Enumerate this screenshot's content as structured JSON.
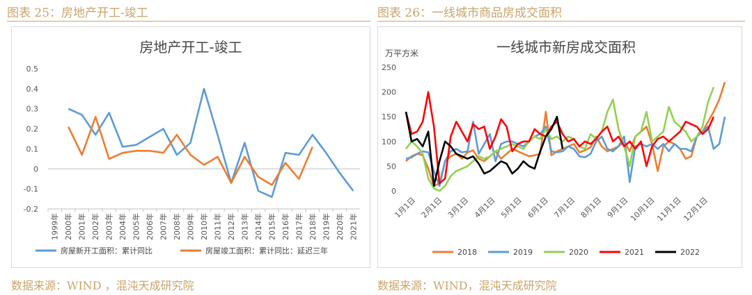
{
  "left": {
    "fig_label": "图表 25：房地产开工-竣工",
    "source": "数据来源：WIND ，混沌天成研究院",
    "chart_data": {
      "type": "line",
      "title": "房地产开工-竣工",
      "categories": [
        "1999年",
        "2000年",
        "2001年",
        "2002年",
        "2003年",
        "2004年",
        "2005年",
        "2006年",
        "2007年",
        "2008年",
        "2009年",
        "2010年",
        "2011年",
        "2012年",
        "2013年",
        "2014年",
        "2015年",
        "2016年",
        "2017年",
        "2018年",
        "2019年",
        "2020年",
        "2021年"
      ],
      "ylim": [
        -0.2,
        0.5
      ],
      "yticks": [
        "0.5",
        "0.4",
        "0.3",
        "0.2",
        "0.1",
        "0",
        "-0.1",
        "-0.2"
      ],
      "legend_position": "bottom",
      "series": [
        {
          "name": "房屋新开工面积：累计同比",
          "color": "#5b9bd5",
          "values": [
            null,
            0.3,
            0.27,
            0.17,
            0.28,
            0.11,
            0.12,
            0.16,
            0.2,
            0.07,
            0.13,
            0.4,
            0.17,
            -0.07,
            0.13,
            -0.11,
            -0.14,
            0.08,
            0.07,
            0.17,
            0.08,
            -0.02,
            -0.11
          ]
        },
        {
          "name": "房屋竣工面积：累计同比：延迟三年",
          "color": "#ed7d31",
          "values": [
            null,
            0.21,
            0.07,
            0.26,
            0.05,
            0.08,
            0.09,
            0.09,
            0.08,
            0.17,
            0.07,
            0.02,
            0.06,
            -0.07,
            0.06,
            -0.04,
            -0.08,
            0.03,
            -0.05,
            0.11,
            null,
            null,
            null
          ]
        }
      ]
    }
  },
  "right": {
    "fig_label": "图表 26：一线城市商品房成交面积",
    "source": "数据来源：WIND，混沌天成研究院",
    "chart_data": {
      "type": "line",
      "title": "一线城市新房成交面积",
      "unit_label": "万平方米",
      "x_ticks": [
        "1月1日",
        "2月1日",
        "3月1日",
        "4月1日",
        "5月1日",
        "6月1日",
        "7月1日",
        "8月1日",
        "9月1日",
        "10月1日",
        "11月1日",
        "12月1日"
      ],
      "ylim": [
        0,
        250
      ],
      "yticks": [
        "250",
        "200",
        "150",
        "100",
        "50",
        "0"
      ],
      "legend_position": "bottom",
      "series": [
        {
          "name": "2018",
          "color": "#ed7d31",
          "values": [
            60,
            70,
            75,
            72,
            45,
            10,
            15,
            60,
            70,
            75,
            65,
            78,
            82,
            65,
            60,
            70,
            80,
            65,
            75,
            85,
            80,
            75,
            70,
            72,
            75,
            160,
            72,
            80,
            85,
            90,
            95,
            78,
            82,
            88,
            110,
            90,
            80,
            85,
            90,
            100,
            80,
            110,
            120,
            130,
            95,
            40,
            90,
            100,
            95,
            85,
            65,
            70,
            110,
            120,
            140,
            160,
            185,
            220
          ]
        },
        {
          "name": "2019",
          "color": "#5b9bd5",
          "values": [
            65,
            68,
            75,
            80,
            78,
            40,
            10,
            60,
            80,
            85,
            78,
            80,
            140,
            75,
            95,
            115,
            60,
            95,
            100,
            100,
            95,
            90,
            100,
            110,
            115,
            130,
            80,
            78,
            80,
            90,
            85,
            70,
            68,
            75,
            100,
            110,
            85,
            80,
            90,
            110,
            18,
            90,
            95,
            90,
            95,
            85,
            95,
            80,
            95,
            85,
            85,
            80,
            110,
            120,
            130,
            85,
            95,
            150
          ]
        },
        {
          "name": "2020",
          "color": "#92d050",
          "values": [
            85,
            100,
            90,
            75,
            25,
            5,
            0,
            10,
            30,
            40,
            45,
            50,
            60,
            70,
            65,
            70,
            80,
            85,
            90,
            95,
            90,
            85,
            100,
            110,
            105,
            125,
            105,
            110,
            100,
            110,
            105,
            90,
            85,
            115,
            105,
            120,
            160,
            185,
            125,
            90,
            50,
            110,
            120,
            160,
            100,
            110,
            120,
            170,
            140,
            130,
            120,
            100,
            110,
            130,
            180,
            210
          ]
        },
        {
          "name": "2021",
          "color": "#ff0000",
          "values": [
            160,
            115,
            120,
            140,
            200,
            130,
            15,
            25,
            110,
            140,
            120,
            100,
            135,
            125,
            130,
            85,
            110,
            145,
            130,
            80,
            95,
            100,
            100,
            125,
            115,
            110,
            130,
            140,
            115,
            100,
            105,
            90,
            100,
            95,
            105,
            120,
            130,
            100,
            110,
            90,
            100,
            85,
            100,
            50,
            90,
            105,
            110,
            100,
            110,
            120,
            140,
            135,
            130,
            115,
            125,
            150
          ]
        },
        {
          "name": "2022",
          "color": "#000000",
          "values": [
            160,
            100,
            105,
            90,
            120,
            10,
            60,
            100,
            90,
            75,
            70,
            65,
            70,
            55,
            35,
            40,
            50,
            60,
            55,
            35,
            45,
            60,
            50,
            45,
            80,
            110,
            125,
            150,
            85
          ]
        }
      ]
    }
  }
}
